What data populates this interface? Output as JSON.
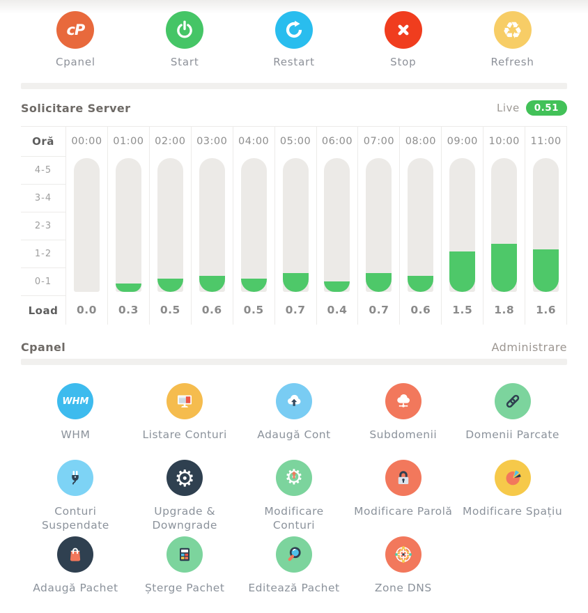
{
  "page": {
    "controls": [
      {
        "label": "Cpanel",
        "icon": "cpanel-logo",
        "bg": "#e8693c"
      },
      {
        "label": "Start",
        "icon": "power",
        "bg": "#45c566"
      },
      {
        "label": "Restart",
        "icon": "restart-arrow",
        "bg": "#29bdee"
      },
      {
        "label": "Stop",
        "icon": "x-cross",
        "bg": "#f03d1e"
      },
      {
        "label": "Refresh",
        "icon": "recycle",
        "bg": "#f7cd66"
      }
    ]
  },
  "load_section": {
    "title": "Solicitare Server",
    "live_label": "Live",
    "live_value": "0.51",
    "badge_color": "#42c158"
  },
  "chart_data": {
    "type": "bar",
    "title": "Solicitare Server",
    "x_header": "Oră",
    "load_header": "Load",
    "row_bands": [
      "4-5",
      "3-4",
      "2-3",
      "1-2",
      "0-1"
    ],
    "categories": [
      "00:00",
      "01:00",
      "02:00",
      "03:00",
      "04:00",
      "05:00",
      "06:00",
      "07:00",
      "08:00",
      "09:00",
      "10:00",
      "11:00"
    ],
    "values": [
      0.0,
      0.3,
      0.5,
      0.6,
      0.5,
      0.7,
      0.4,
      0.7,
      0.6,
      1.5,
      1.8,
      1.6
    ],
    "value_labels": [
      "0.0",
      "0.3",
      "0.5",
      "0.6",
      "0.5",
      "0.7",
      "0.4",
      "0.7",
      "0.6",
      "1.5",
      "1.8",
      "1.6"
    ],
    "ylim": [
      0,
      5
    ],
    "live_value": 0.51,
    "bar_track_color": "#eceae7",
    "bar_fill_color": "#4ec869",
    "grid": false,
    "legend": false
  },
  "cpanel_section": {
    "title": "Cpanel",
    "subtitle": "Administrare",
    "items": [
      {
        "label": "WHM",
        "icon": "whm-logo",
        "bg": "#3dbbee"
      },
      {
        "label": "Listare Conturi",
        "icon": "monitor",
        "bg": "#f5bc4e"
      },
      {
        "label": "Adaugă Cont",
        "icon": "cloud-upload",
        "bg": "#79ccf3"
      },
      {
        "label": "Subdomenii",
        "icon": "cloud-network",
        "bg": "#f2785c"
      },
      {
        "label": "Domenii Parcate",
        "icon": "chain-link",
        "bg": "#7cd49d"
      },
      {
        "label": "Conturi\nSuspendate",
        "icon": "plug",
        "bg": "#7dd3f5"
      },
      {
        "label": "Upgrade &\nDowngrade",
        "icon": "gear",
        "bg": "#2f4050"
      },
      {
        "label": "Modificare\nConturi",
        "icon": "gear-up-arrow",
        "bg": "#7cd49d"
      },
      {
        "label": "Modificare Parolă",
        "icon": "padlock",
        "bg": "#f2785c"
      },
      {
        "label": "Modificare Spațiu",
        "icon": "pie-chart",
        "bg": "#f6c94a"
      },
      {
        "label": "Adaugă Pachet",
        "icon": "shopping-bag",
        "bg": "#2f4050"
      },
      {
        "label": "Șterge Pachet",
        "icon": "calculator",
        "bg": "#7cd49d"
      },
      {
        "label": "Editează Pachet",
        "icon": "magnifier",
        "bg": "#7cd49d"
      },
      {
        "label": "Zone DNS",
        "icon": "globe",
        "bg": "#f2785c"
      }
    ]
  }
}
